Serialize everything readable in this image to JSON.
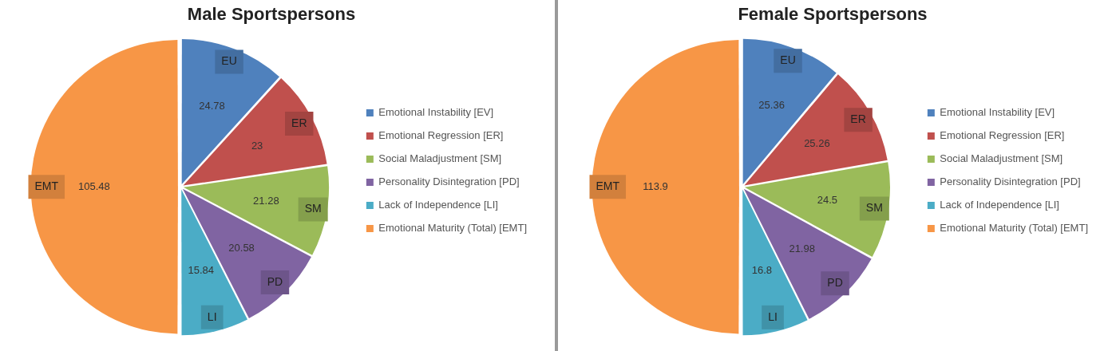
{
  "chart_data": [
    {
      "type": "pie",
      "title": "Male Sportspersons",
      "categories": [
        "Emotional Instability [EV]",
        "Emotional Regression [ER]",
        "Social Maladjustment [SM]",
        "Personality Disintegration [PD]",
        "Lack of Independence [LI]",
        "Emotional Maturity (Total) [EMT]"
      ],
      "values": [
        24.78,
        23,
        21.28,
        20.58,
        15.84,
        105.48
      ],
      "colors": [
        "#4f81bd",
        "#c0504d",
        "#9bbb59",
        "#8064a2",
        "#4bacc6",
        "#f79646"
      ],
      "annotations": [
        "EU",
        "ER",
        "SM",
        "PD",
        "LI",
        "EMT"
      ],
      "data_labels": true,
      "legend": "right"
    },
    {
      "type": "pie",
      "title": "Female Sportspersons",
      "categories": [
        "Emotional Instability [EV]",
        "Emotional Regression [ER]",
        "Social Maladjustment [SM]",
        "Personality Disintegration [PD]",
        "Lack of Independence [LI]",
        "Emotional Maturity (Total) [EMT]"
      ],
      "values": [
        25.36,
        25.26,
        24.5,
        21.98,
        16.8,
        113.9
      ],
      "colors": [
        "#4f81bd",
        "#c0504d",
        "#9bbb59",
        "#8064a2",
        "#4bacc6",
        "#f79646"
      ],
      "annotations": [
        "EU",
        "ER",
        "SM",
        "PD",
        "LI",
        "EMT"
      ],
      "data_labels": true,
      "legend": "right"
    }
  ]
}
